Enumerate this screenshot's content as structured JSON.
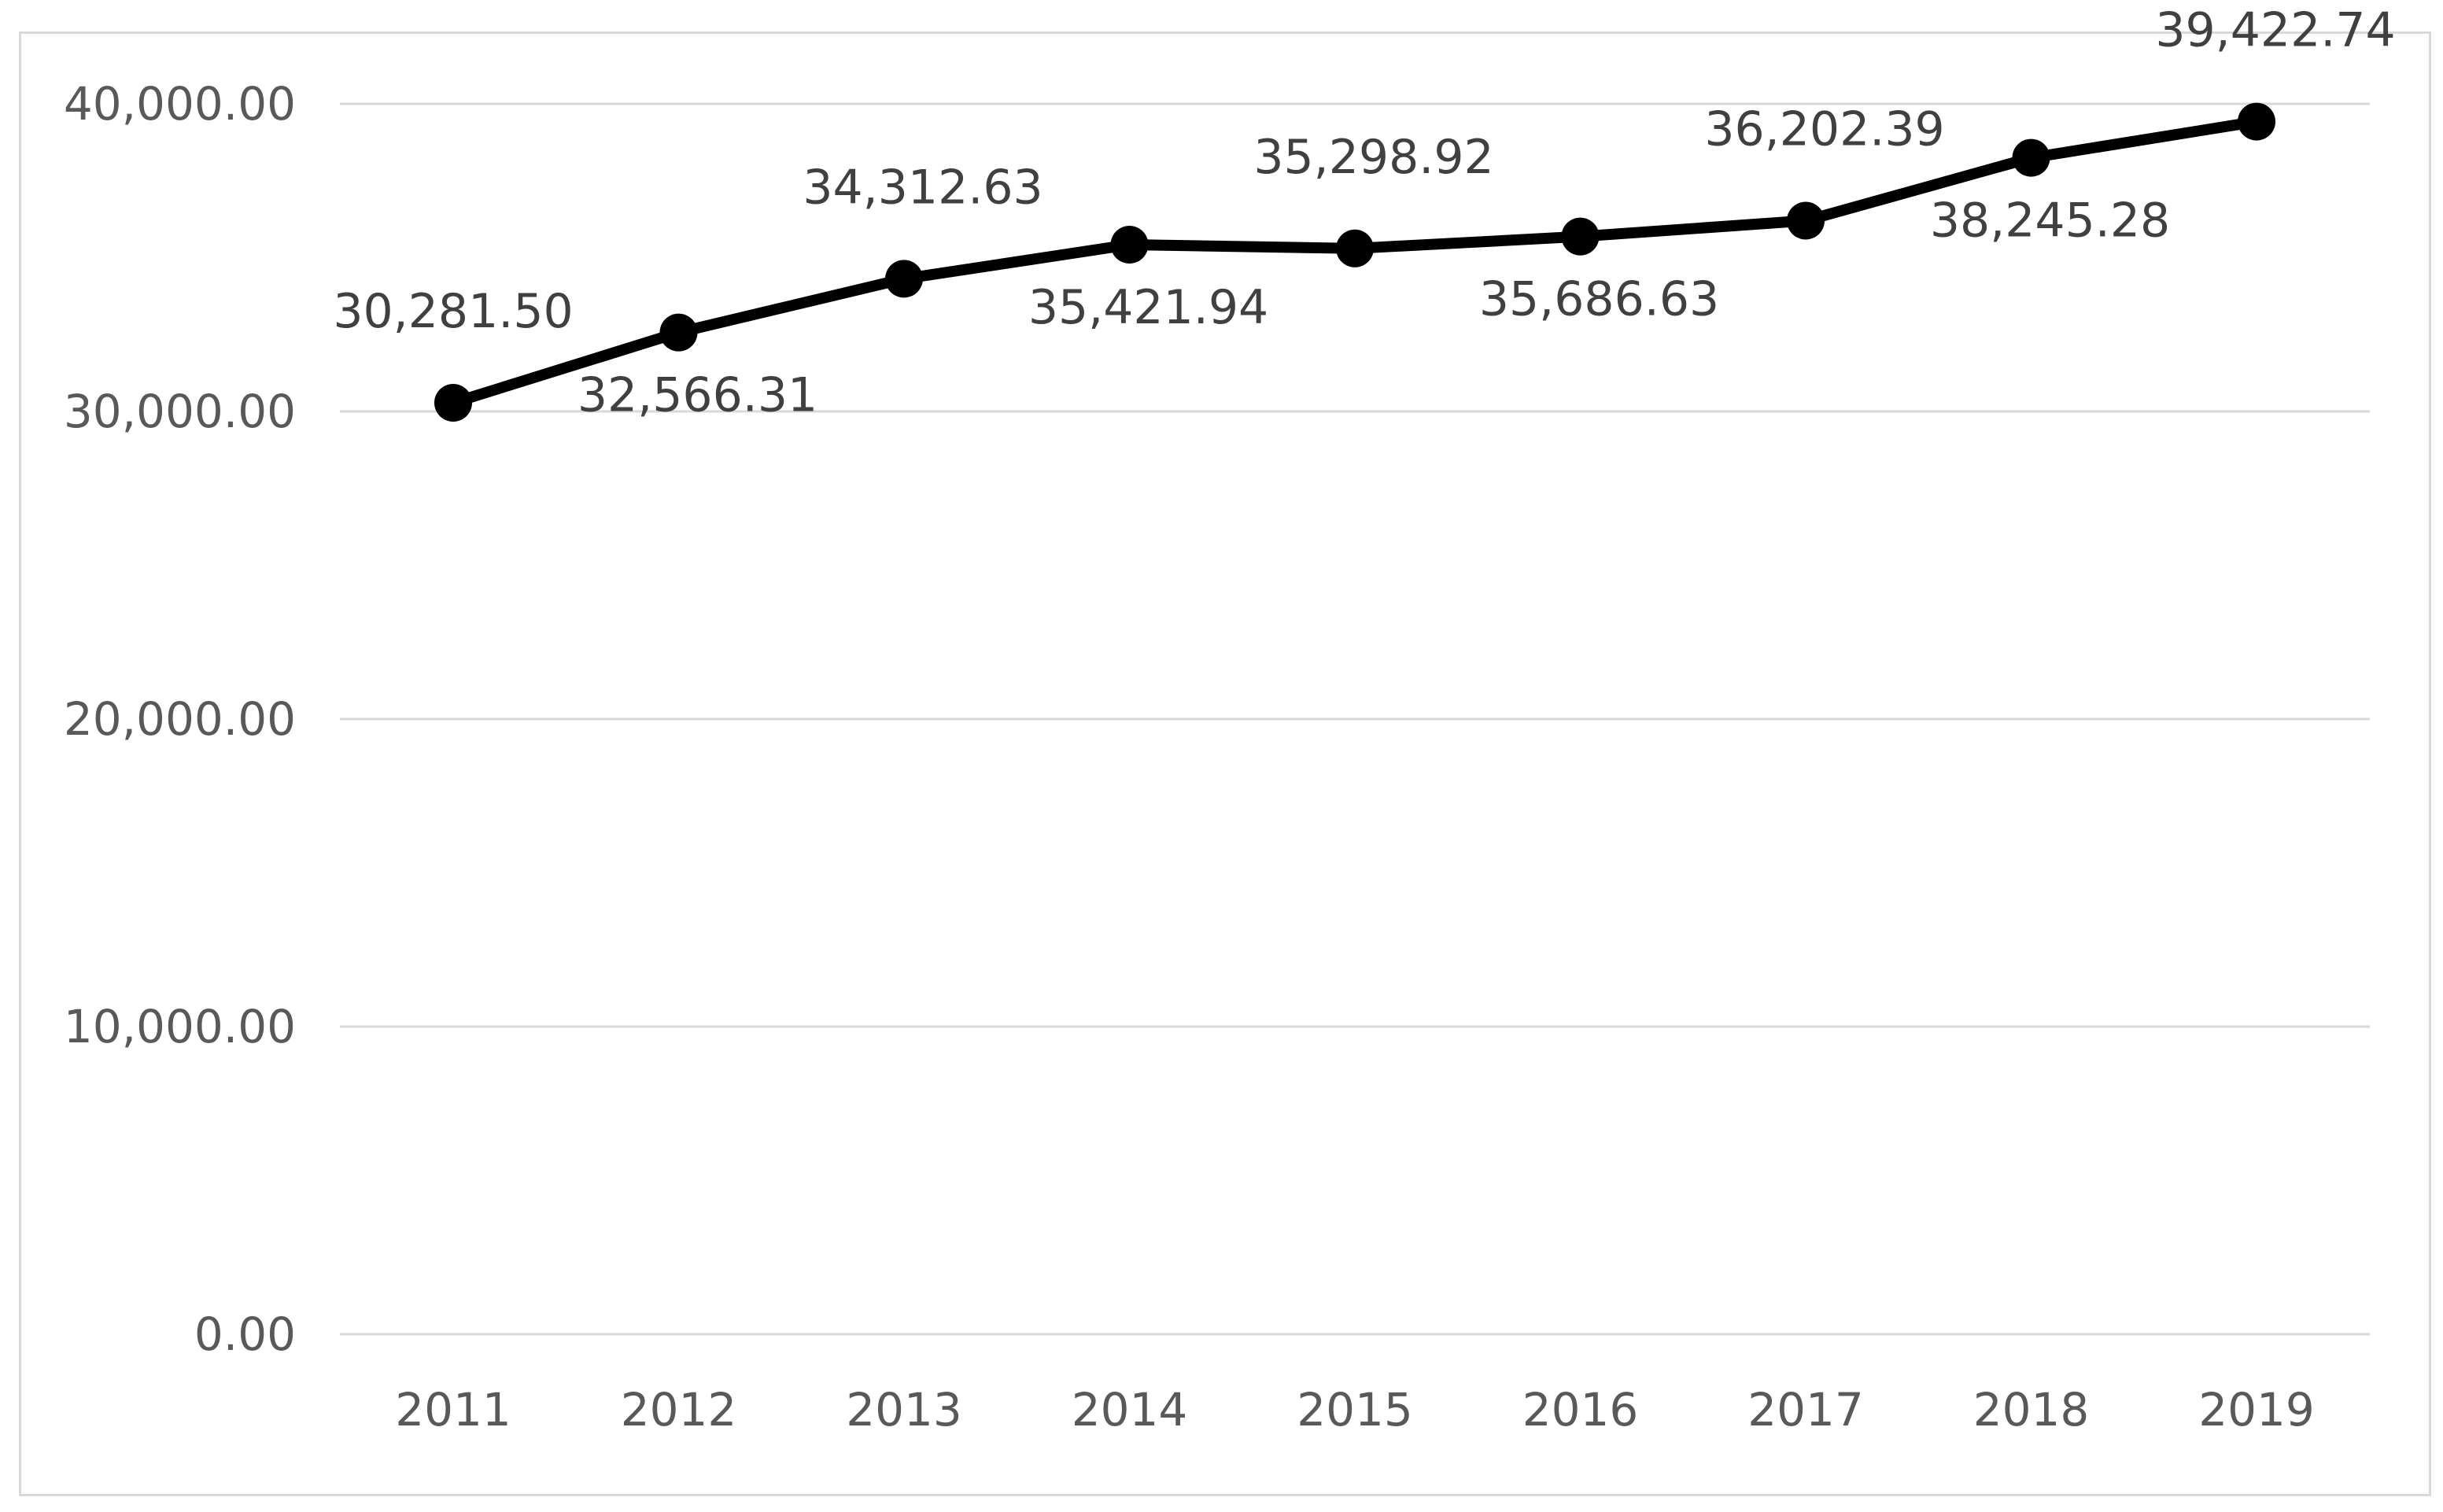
{
  "chart_data": {
    "type": "line",
    "title": "",
    "xlabel": "",
    "ylabel": "",
    "categories": [
      "2011",
      "2012",
      "2013",
      "2014",
      "2015",
      "2016",
      "2017",
      "2018",
      "2019"
    ],
    "series": [
      {
        "values": [
          30281.5,
          32566.31,
          34312.63,
          35421.94,
          35298.92,
          35686.63,
          36202.39,
          38245.28,
          39422.74
        ],
        "labels": [
          "30,281.50",
          "32,566.31",
          "34,312.63",
          "35,421.94",
          "35,298.92",
          "35,686.63",
          "36,202.39",
          "38,245.28",
          "39,422.74"
        ],
        "color": "#000000"
      }
    ],
    "ylim": [
      0,
      40000
    ],
    "yticks": [
      0,
      10000,
      20000,
      30000,
      40000
    ],
    "ytick_labels": [
      "0.00",
      "10,000.00",
      "20,000.00",
      "30,000.00",
      "40,000.00"
    ],
    "grid": true,
    "legend": "none",
    "data_label_positions": [
      "above",
      "below",
      "above",
      "below",
      "above",
      "below",
      "above",
      "below",
      "above"
    ]
  }
}
